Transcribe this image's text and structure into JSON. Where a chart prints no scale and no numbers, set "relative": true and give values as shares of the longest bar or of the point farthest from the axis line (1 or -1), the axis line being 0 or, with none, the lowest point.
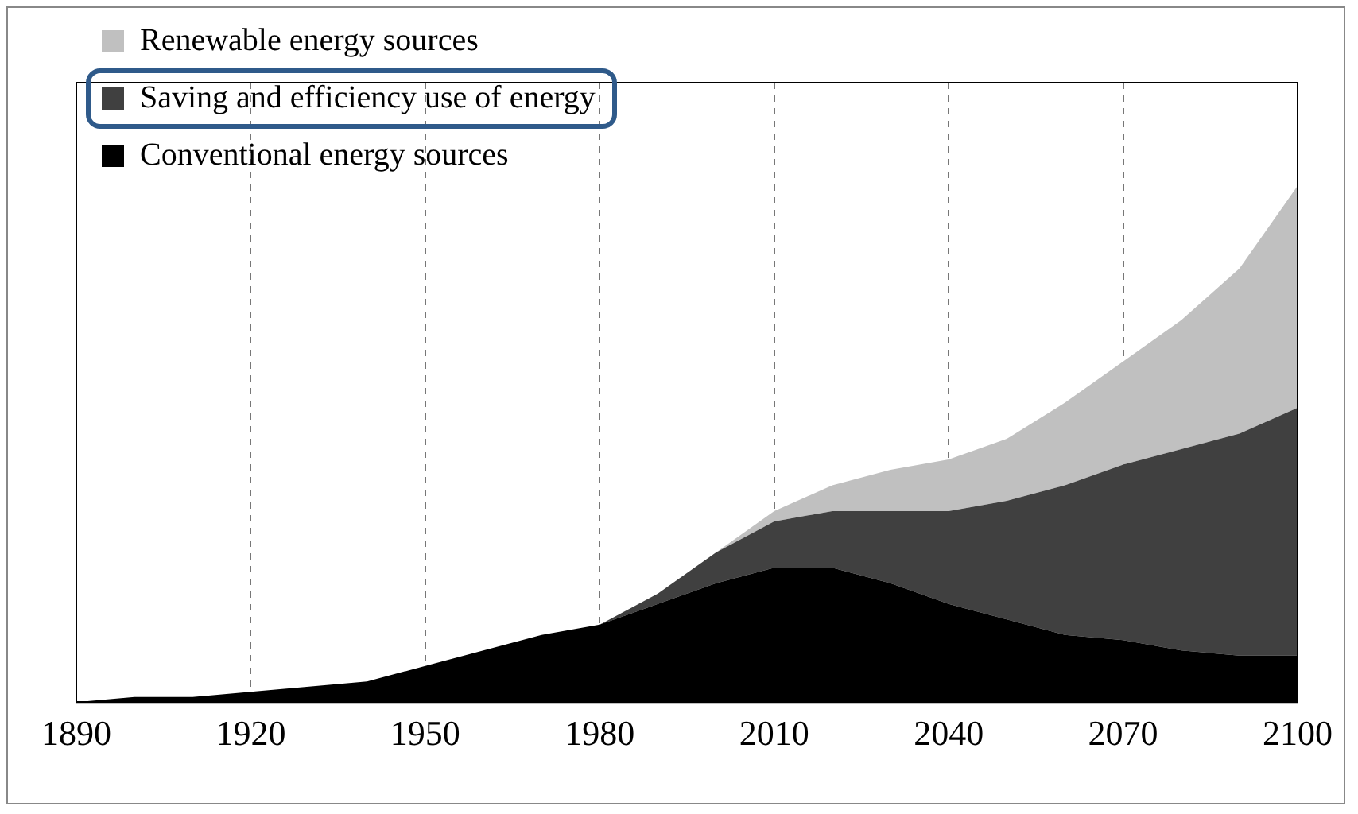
{
  "chart_data": {
    "type": "area",
    "stacked": true,
    "relative": true,
    "x": [
      1890,
      1900,
      1910,
      1920,
      1930,
      1940,
      1950,
      1960,
      1970,
      1980,
      1990,
      2000,
      2010,
      2020,
      2030,
      2040,
      2050,
      2060,
      2070,
      2080,
      2090,
      2100
    ],
    "xlim": [
      1890,
      2100
    ],
    "xticks": [
      1890,
      1920,
      1950,
      1980,
      2010,
      2040,
      2070,
      2100
    ],
    "series": [
      {
        "name": "Conventional energy sources",
        "color": "#000000",
        "values": [
          0,
          0.01,
          0.01,
          0.02,
          0.03,
          0.04,
          0.07,
          0.1,
          0.13,
          0.15,
          0.19,
          0.23,
          0.26,
          0.26,
          0.23,
          0.19,
          0.16,
          0.13,
          0.12,
          0.1,
          0.09,
          0.09
        ]
      },
      {
        "name": "Saving and efficiency use of energy",
        "color": "#404040",
        "values": [
          null,
          null,
          null,
          null,
          null,
          null,
          null,
          null,
          null,
          0,
          0.02,
          0.06,
          0.09,
          0.11,
          0.14,
          0.18,
          0.23,
          0.29,
          0.34,
          0.39,
          0.43,
          0.48
        ]
      },
      {
        "name": "Renewable energy sources",
        "color": "#c0c0c0",
        "values": [
          null,
          null,
          null,
          null,
          null,
          null,
          null,
          null,
          null,
          null,
          null,
          0,
          0.02,
          0.05,
          0.08,
          0.1,
          0.12,
          0.16,
          0.2,
          0.25,
          0.32,
          0.43
        ]
      }
    ],
    "grid": "x",
    "legend": "top left"
  }
}
